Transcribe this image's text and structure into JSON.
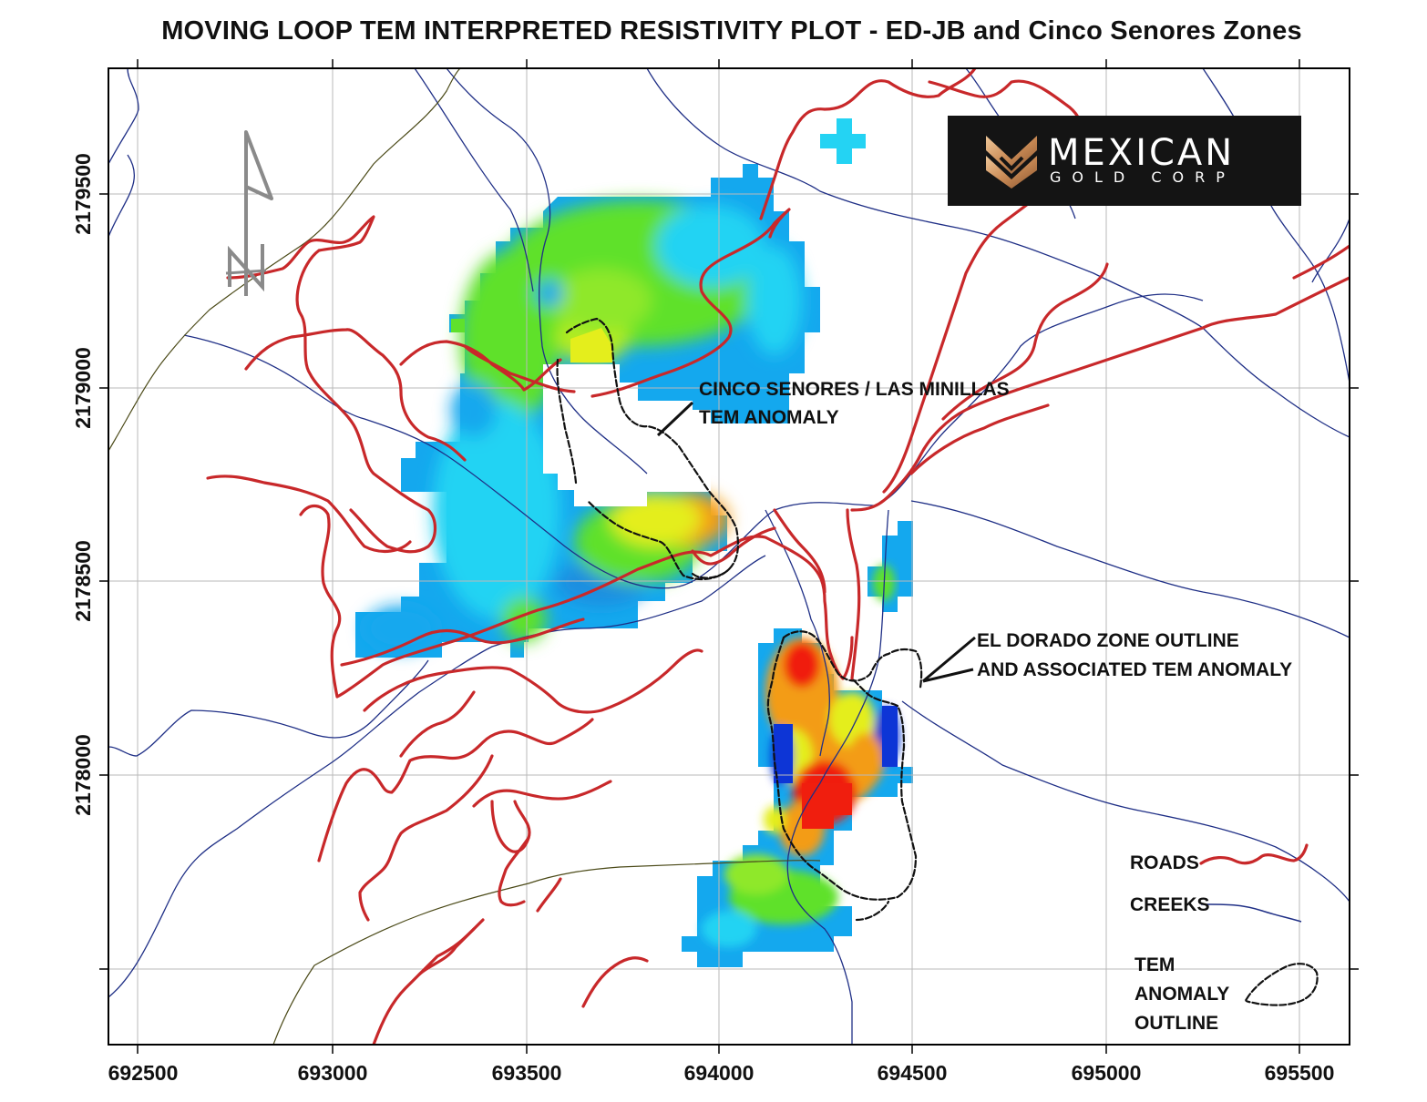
{
  "title": "MOVING LOOP TEM INTERPRETED RESISTIVITY PLOT - ED-JB and Cinco Senores Zones",
  "axes": {
    "x_ticks": [
      "692500",
      "693000",
      "693500",
      "694000",
      "694500",
      "695000",
      "695500"
    ],
    "y_ticks": [
      "2179500",
      "2179000",
      "2178500",
      "2178000"
    ]
  },
  "north_arrow": {
    "label": "N"
  },
  "logo": {
    "main": "MEXICAN",
    "sub": "GOLD CORP"
  },
  "annotations": {
    "cinco_line1": "CINCO SENORES / LAS MINILLAS",
    "cinco_line2": "TEM ANOMALY",
    "dorado_line1": "EL DORADO ZONE OUTLINE",
    "dorado_line2": "AND ASSOCIATED TEM ANOMALY"
  },
  "legend": {
    "roads": "ROADS",
    "creeks": "CREEKS",
    "tem_line1": "TEM",
    "tem_line2": "ANOMALY",
    "tem_line3": "OUTLINE"
  },
  "colors": {
    "road": "#c8282a",
    "creek": "#1f2f86",
    "blue": "#14a8ee",
    "cyan": "#24d3f3",
    "green": "#5fe12c",
    "yellow": "#e4ee1c",
    "orange": "#f39c12",
    "red": "#f01e0e",
    "deep_blue": "#0d35d6"
  }
}
